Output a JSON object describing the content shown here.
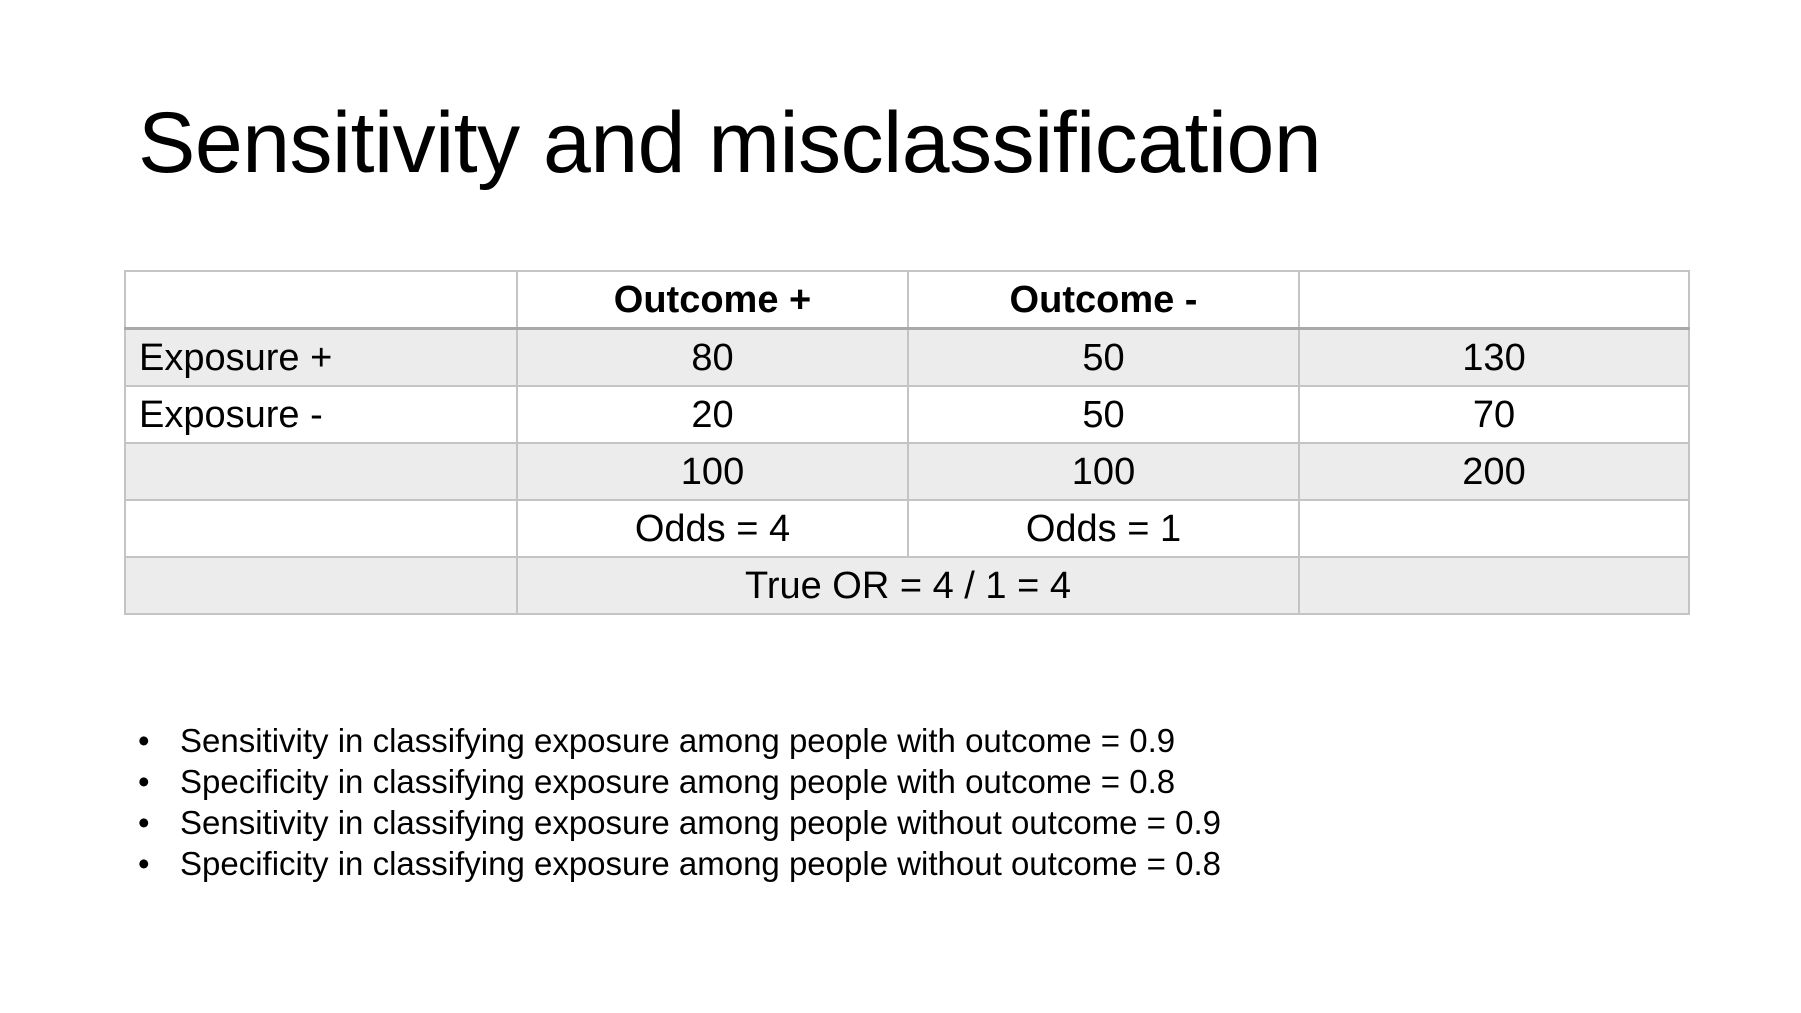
{
  "title": "Sensitivity and misclassification",
  "table": {
    "header": [
      "",
      "Outcome +",
      "Outcome -",
      ""
    ],
    "rows": [
      [
        "Exposure +",
        "80",
        "50",
        "130"
      ],
      [
        "Exposure -",
        "20",
        "50",
        "70"
      ],
      [
        "",
        "100",
        "100",
        "200"
      ],
      [
        "",
        "Odds = 4",
        "Odds = 1",
        ""
      ]
    ],
    "last_row": {
      "first": "",
      "merged": "True OR = 4 / 1 = 4",
      "last": ""
    }
  },
  "bullet_symbol": "•",
  "bullets": [
    "Sensitivity in classifying exposure among people with outcome = 0.9",
    "Specificity in classifying exposure among people with outcome = 0.8",
    "Sensitivity in classifying exposure among people without outcome = 0.9",
    "Specificity in classifying exposure among people without outcome = 0.8"
  ]
}
